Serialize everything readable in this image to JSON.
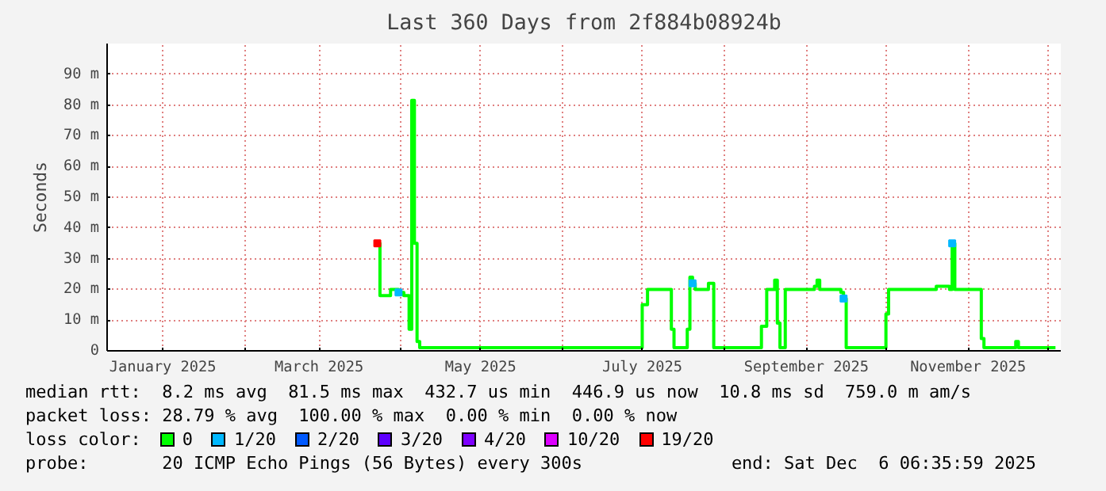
{
  "chart_data": {
    "type": "step",
    "title": "Last 360 Days from 2f884b08924b",
    "ylabel": "Seconds",
    "xlim": [
      "2024-12-11",
      "2025-12-06"
    ],
    "ylim": [
      0,
      100
    ],
    "xticks": [
      {
        "value": "2025-01-01",
        "label": "January 2025"
      },
      {
        "value": "2025-02-01",
        "label": null
      },
      {
        "value": "2025-03-01",
        "label": "March 2025"
      },
      {
        "value": "2025-04-01",
        "label": null
      },
      {
        "value": "2025-05-01",
        "label": "May 2025"
      },
      {
        "value": "2025-06-01",
        "label": null
      },
      {
        "value": "2025-07-01",
        "label": "July 2025"
      },
      {
        "value": "2025-08-01",
        "label": null
      },
      {
        "value": "2025-09-01",
        "label": "September 2025"
      },
      {
        "value": "2025-10-01",
        "label": null
      },
      {
        "value": "2025-11-01",
        "label": "November 2025"
      },
      {
        "value": "2025-12-01",
        "label": null
      }
    ],
    "yticks": [
      0,
      {
        "value": 10,
        "label": "10 m"
      },
      {
        "value": 20,
        "label": "20 m"
      },
      {
        "value": 30,
        "label": "30 m"
      },
      {
        "value": 40,
        "label": "40 m"
      },
      {
        "value": 50,
        "label": "50 m"
      },
      {
        "value": 60,
        "label": "60 m"
      },
      {
        "value": 70,
        "label": "70 m"
      },
      {
        "value": 80,
        "label": "80 m"
      },
      {
        "value": 90,
        "label": "90 m"
      }
    ],
    "grid": true,
    "legend": "bottom",
    "legend_title": "loss color:",
    "series": [
      {
        "name": "0",
        "color": "#00ff00",
        "x": [
          "2025-03-23",
          "2025-03-24",
          "2025-03-27",
          "2025-03-28",
          "2025-03-31",
          "2025-04-02",
          "2025-04-03",
          "2025-04-04",
          "2025-04-05",
          "2025-04-06",
          "2025-04-07",
          "2025-04-08",
          "2025-05-01",
          "2025-06-01",
          "2025-06-30",
          "2025-07-01",
          "2025-07-03",
          "2025-07-11",
          "2025-07-12",
          "2025-07-13",
          "2025-07-18",
          "2025-07-19",
          "2025-07-20",
          "2025-07-21",
          "2025-07-25",
          "2025-07-26",
          "2025-07-28",
          "2025-08-15",
          "2025-08-17",
          "2025-08-20",
          "2025-08-21",
          "2025-08-22",
          "2025-08-24",
          "2025-09-04",
          "2025-09-05",
          "2025-09-06",
          "2025-09-14",
          "2025-09-15",
          "2025-09-16",
          "2025-09-30",
          "2025-10-01",
          "2025-10-02",
          "2025-10-20",
          "2025-10-25",
          "2025-10-26",
          "2025-10-27",
          "2025-11-05",
          "2025-11-06",
          "2025-11-07",
          "2025-11-19",
          "2025-11-20",
          "2025-12-04"
        ],
        "values": [
          35,
          18,
          18,
          20,
          19,
          18,
          18,
          7,
          81.5,
          35,
          3,
          1,
          1,
          1,
          1,
          15,
          20,
          20,
          7,
          1,
          7,
          24,
          22,
          20,
          20,
          22,
          1,
          8,
          20,
          23,
          9,
          1,
          20,
          21,
          23,
          20,
          19,
          17,
          1,
          1,
          12,
          20,
          21,
          20,
          35,
          20,
          20,
          4,
          1,
          3,
          1,
          1
        ]
      },
      {
        "name": "1/20",
        "color": "#00b8ff",
        "type": "scatter",
        "marker": "square",
        "x": [
          "2025-03-31",
          "2025-07-20",
          "2025-09-15",
          "2025-10-26"
        ],
        "values": [
          19,
          22,
          17,
          35
        ]
      },
      {
        "name": "2/20",
        "color": "#0059ff",
        "type": "scatter",
        "marker": "square"
      },
      {
        "name": "3/20",
        "color": "#5e00ff",
        "type": "scatter",
        "marker": "square"
      },
      {
        "name": "4/20",
        "color": "#7e00ff",
        "type": "scatter",
        "marker": "square"
      },
      {
        "name": "10/20",
        "color": "#dd00ff",
        "type": "scatter",
        "marker": "square"
      },
      {
        "name": "19/20",
        "color": "#ff0000",
        "type": "scatter",
        "marker": "square",
        "x": [
          "2025-03-23"
        ],
        "values": [
          35
        ]
      }
    ],
    "annotations": [
      "median rtt:  8.2 ms avg  81.5 ms max  432.7 us min  446.9 us now  10.8 ms sd  759.0 m am/s",
      "packet loss: 28.79 % avg  100.00 % max  0.00 % min  0.00 % now",
      "probe:       20 ICMP Echo Pings (56 Bytes) every 300s",
      "end: Sat Dec  6 06:35:59 2025"
    ]
  }
}
